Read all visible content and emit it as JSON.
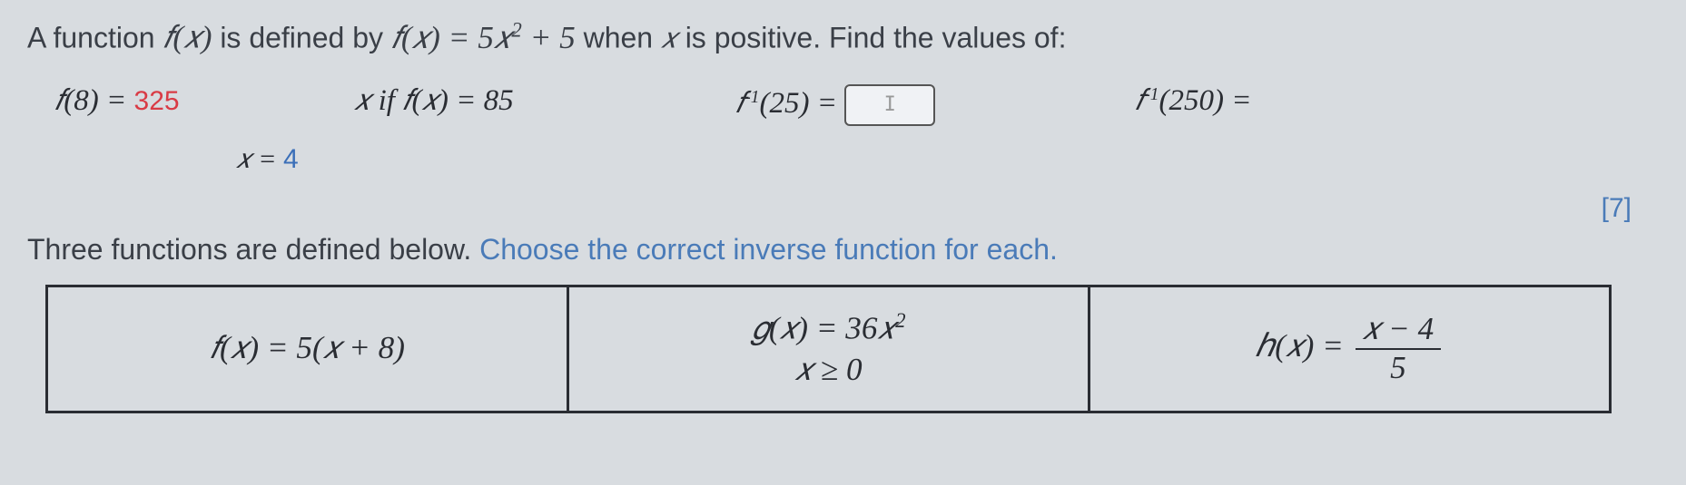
{
  "question": {
    "intro_prefix": "A function ",
    "intro_mid": " is defined by  ",
    "intro_suffix": " when ",
    "intro_end": " is positive.  Find the values of:",
    "func_def_lhs": "𝑓(𝑥)",
    "func_def_rhs": "5𝑥",
    "func_def_exp": "2",
    "func_def_tail": " + 5",
    "var_x": "𝑥"
  },
  "items": {
    "a_label": "𝑓(8) = ",
    "a_answer": "325",
    "b_label_pre": "𝑥 if 𝑓(𝑥) = 85",
    "b_answer_lhs": "𝑥 =  ",
    "b_answer_val": "4",
    "c_label": "𝑓",
    "c_exp": "-1",
    "c_arg": "(25) = ",
    "c_input_placeholder": "I",
    "d_label": "𝑓",
    "d_exp": "-1",
    "d_arg": "(250) = "
  },
  "marks": "[7]",
  "part2": {
    "prefix": "Three functions are defined below. ",
    "instruction": "Choose the correct inverse function for each."
  },
  "table": {
    "f_text": "𝑓(𝑥) = 5(𝑥 + 8)",
    "g_line1": "𝑔(𝑥) = 36𝑥",
    "g_exp": "2",
    "g_line2": "𝑥 ≥ 0",
    "h_lhs": "ℎ(𝑥) = ",
    "h_num": "𝑥 − 4",
    "h_den": "5"
  },
  "colors": {
    "background": "#d8dce0",
    "text": "#2a2d33",
    "answer_red": "#d93b45",
    "answer_blue": "#3b6fb8",
    "link_blue": "#4a7bb8",
    "border": "#2a2d33"
  },
  "typography": {
    "base_fontsize": 30,
    "question_fontsize": 32,
    "font_family": "Segoe UI, Arial"
  }
}
